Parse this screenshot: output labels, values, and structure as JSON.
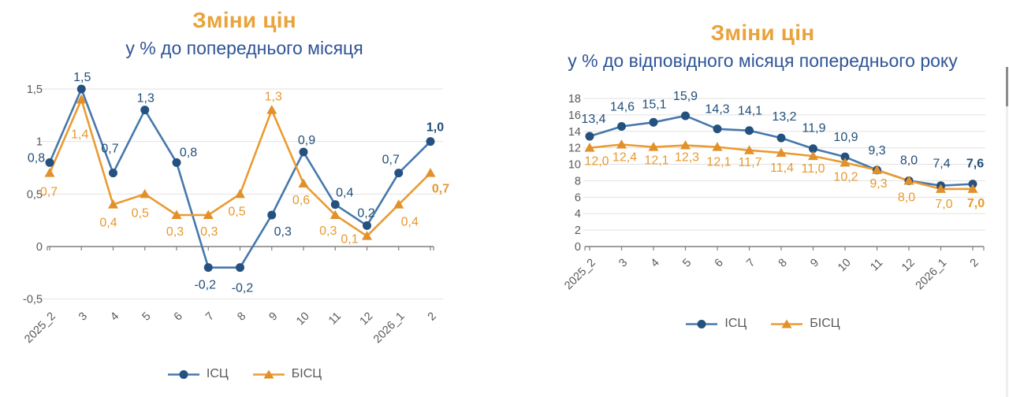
{
  "theme": {
    "title_orange": "#E9A33B",
    "subtitle_blue": "#2F5496",
    "axis_text_gray": "#595959",
    "grid_gray": "#E2E2E2",
    "axis_line_gray": "#7F7F7F"
  },
  "chart_data": [
    {
      "type": "line",
      "title": "Зміни цін",
      "subtitle": "у % до попереднього місяця",
      "categories": [
        "2025_2",
        "3",
        "4",
        "5",
        "6",
        "7",
        "8",
        "9",
        "10",
        "11",
        "12",
        "2026_1",
        "2"
      ],
      "series": [
        {
          "name": "ІСЦ",
          "marker": "circle",
          "line_color": "#4678AC",
          "marker_color": "#24517F",
          "label_color": "#1F4E79",
          "values": [
            0.8,
            1.5,
            0.7,
            1.3,
            0.8,
            -0.2,
            -0.2,
            0.3,
            0.9,
            0.4,
            0.2,
            0.7,
            1.0
          ],
          "labels": [
            "0,8",
            "1,5",
            "0,7",
            "1,3",
            "0,8",
            "-0,2",
            "-0,2",
            "0,3",
            "0,9",
            "0,4",
            "0,2",
            "0,7",
            "1,0"
          ]
        },
        {
          "name": "БІСЦ",
          "marker": "triangle",
          "line_color": "#EA9B31",
          "marker_color": "#E2902A",
          "label_color": "#E7992F",
          "values": [
            0.7,
            1.4,
            0.4,
            0.5,
            0.3,
            0.3,
            0.5,
            1.3,
            0.6,
            0.3,
            0.1,
            0.4,
            0.7
          ],
          "labels": [
            "0,7",
            "1,4",
            "0,4",
            "0,5",
            "0,3",
            "0,3",
            "0,5",
            "1,3",
            "0,6",
            "0,3",
            "0,1",
            "0,4",
            "0,7"
          ]
        }
      ],
      "ylim": [
        -0.5,
        1.5
      ],
      "yticks": [
        "1,5",
        "1",
        "0,5",
        "0",
        "-0,5"
      ],
      "ytick_values": [
        1.5,
        1,
        0.5,
        0,
        -0.5
      ],
      "grid": true,
      "legend_position": "bottom"
    },
    {
      "type": "line",
      "title": "Зміни цін",
      "subtitle": "у % до відповідного місяця попереднього року",
      "categories": [
        "2025_2",
        "3",
        "4",
        "5",
        "6",
        "7",
        "8",
        "9",
        "10",
        "11",
        "12",
        "2026_1",
        "2"
      ],
      "series": [
        {
          "name": "ІСЦ",
          "marker": "circle",
          "line_color": "#4678AC",
          "marker_color": "#24517F",
          "label_color": "#1F4E79",
          "values": [
            13.4,
            14.6,
            15.1,
            15.9,
            14.3,
            14.1,
            13.2,
            11.9,
            10.9,
            9.3,
            8.0,
            7.4,
            7.6
          ],
          "labels": [
            "13,4",
            "14,6",
            "15,1",
            "15,9",
            "14,3",
            "14,1",
            "13,2",
            "11,9",
            "10,9",
            "9,3",
            "8,0",
            "7,4",
            "7,6"
          ]
        },
        {
          "name": "БІСЦ",
          "marker": "triangle",
          "line_color": "#EA9B31",
          "marker_color": "#E2902A",
          "label_color": "#E7992F",
          "values": [
            12.0,
            12.4,
            12.1,
            12.3,
            12.1,
            11.7,
            11.4,
            11.0,
            10.2,
            9.3,
            8.0,
            7.0,
            7.0
          ],
          "labels": [
            "12,0",
            "12,4",
            "12,1",
            "12,3",
            "12,1",
            "11,7",
            "11,4",
            "11,0",
            "10,2",
            "9,3",
            "8,0",
            "7,0",
            "7,0"
          ]
        }
      ],
      "ylim": [
        0,
        18
      ],
      "yticks": [
        "18",
        "16",
        "14",
        "12",
        "10",
        "8",
        "6",
        "4",
        "2",
        "0"
      ],
      "ytick_values": [
        18,
        16,
        14,
        12,
        10,
        8,
        6,
        4,
        2,
        0
      ],
      "grid": true,
      "legend_position": "bottom"
    }
  ]
}
